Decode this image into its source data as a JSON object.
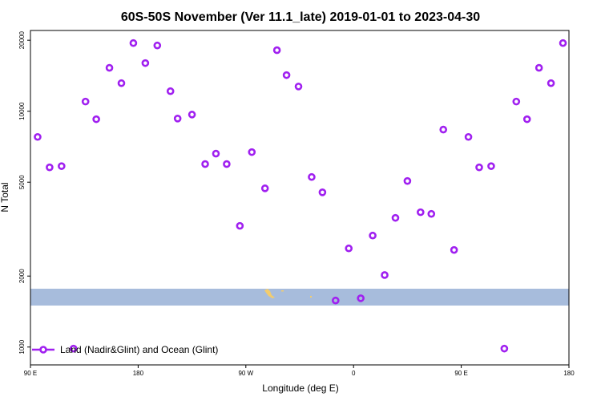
{
  "chart_data": {
    "type": "scatter",
    "title": "60S-50S November (Ver 11.1_late)   2019-01-01 to 2023-04-30",
    "x_label": "Longitude (deg E)",
    "y_label": "N Total",
    "yscale": "log",
    "legend": "lower left",
    "xlim": [
      90,
      540
    ],
    "ylim": [
      840,
      22000
    ],
    "xticks": [
      {
        "value": 90,
        "label": "90 E"
      },
      {
        "value": 180,
        "label": "180"
      },
      {
        "value": 270,
        "label": "90 W"
      },
      {
        "value": 360,
        "label": "0"
      },
      {
        "value": 450,
        "label": "90 E"
      },
      {
        "value": 540,
        "label": "180"
      }
    ],
    "yticks": [
      1000,
      2000,
      5000,
      10000,
      20000
    ],
    "series": [
      {
        "name": "Land (Nadir&Glint) and Ocean (Glint)",
        "color": "#a020f0",
        "x": [
          96,
          106,
          116,
          126,
          136,
          145,
          156,
          166,
          176,
          186,
          196,
          207,
          213,
          225,
          236,
          245,
          254,
          265,
          275,
          286,
          296,
          304,
          314,
          325,
          334,
          345,
          356,
          366,
          376,
          386,
          395,
          405,
          416,
          425,
          435,
          444,
          456,
          465,
          475,
          486,
          496,
          505,
          515,
          525,
          535
        ],
        "values": [
          7780,
          5780,
          5850,
          985,
          10990,
          9250,
          15280,
          13150,
          19450,
          16000,
          19000,
          12160,
          9310,
          9680,
          5970,
          6610,
          5970,
          3265,
          6710,
          4710,
          18150,
          14230,
          12730,
          5260,
          4530,
          1575,
          2620,
          1610,
          2970,
          2020,
          3530,
          5060,
          3730,
          3670,
          8360,
          2580,
          7780,
          5780,
          5850,
          985,
          10990,
          9250,
          15280,
          13150,
          19450
        ]
      }
    ]
  }
}
